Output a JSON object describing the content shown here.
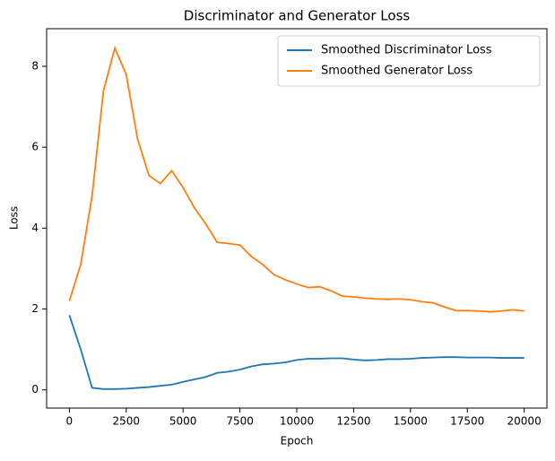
{
  "chart_data": {
    "type": "line",
    "title": "Discriminator and Generator Loss",
    "x_label": "Epoch",
    "y_label": "Loss",
    "x": [
      0,
      500,
      1000,
      1500,
      2000,
      2500,
      3000,
      3500,
      4000,
      4500,
      5000,
      5500,
      6000,
      6500,
      7000,
      7500,
      8000,
      8500,
      9000,
      9500,
      10000,
      10500,
      11000,
      11500,
      12000,
      12500,
      13000,
      13500,
      14000,
      14500,
      15000,
      15500,
      16000,
      16500,
      17000,
      17500,
      18000,
      18500,
      19000,
      19500,
      20000
    ],
    "series": [
      {
        "name": "Smoothed Discriminator Loss",
        "color": "#1f77b4",
        "values": [
          1.85,
          1.0,
          0.05,
          0.02,
          0.02,
          0.03,
          0.05,
          0.07,
          0.1,
          0.13,
          0.2,
          0.26,
          0.32,
          0.42,
          0.45,
          0.5,
          0.58,
          0.63,
          0.65,
          0.68,
          0.74,
          0.77,
          0.77,
          0.78,
          0.78,
          0.75,
          0.73,
          0.74,
          0.76,
          0.76,
          0.77,
          0.79,
          0.8,
          0.81,
          0.81,
          0.8,
          0.8,
          0.8,
          0.79,
          0.79,
          0.79
        ]
      },
      {
        "name": "Smoothed Generator Loss",
        "color": "#ff7f0e",
        "values": [
          2.2,
          3.1,
          4.8,
          7.4,
          8.45,
          7.8,
          6.2,
          5.3,
          5.1,
          5.42,
          5.0,
          4.5,
          4.1,
          3.65,
          3.62,
          3.58,
          3.3,
          3.1,
          2.85,
          2.72,
          2.62,
          2.53,
          2.55,
          2.45,
          2.32,
          2.3,
          2.27,
          2.25,
          2.24,
          2.25,
          2.23,
          2.18,
          2.15,
          2.05,
          1.96,
          1.96,
          1.95,
          1.93,
          1.95,
          1.98,
          1.95
        ]
      }
    ],
    "xlim": [
      -1000,
      21000
    ],
    "ylim": [
      -0.45,
      8.93
    ],
    "xticks": [
      0,
      2500,
      5000,
      7500,
      10000,
      12500,
      15000,
      17500,
      20000
    ],
    "yticks": [
      0,
      2,
      4,
      6,
      8
    ],
    "legend": "upper right"
  }
}
